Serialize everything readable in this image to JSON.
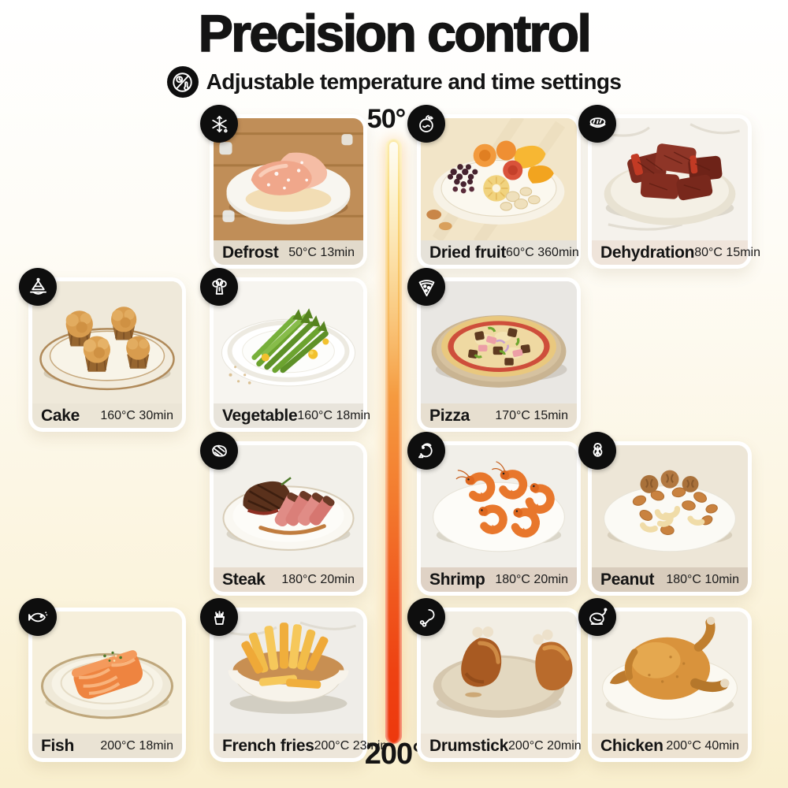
{
  "header": {
    "title": "Precision control",
    "subtitle": "Adjustable temperature and time settings",
    "subtitle_icon": "time-temperature-icon"
  },
  "scale": {
    "top_label": "50°",
    "bottom_label": "200°",
    "gradient_top_color": "#FCEBA8",
    "gradient_bottom_color": "#ED380D"
  },
  "colors": {
    "badge_background": "#0E0E0E",
    "card_footer": "#EAE2D3",
    "page_bottom_tint": "#F9EFCE",
    "text": "#141414"
  },
  "cards": [
    {
      "id": "defrost",
      "label": "Defrost",
      "temp": "50°C",
      "time": "13min",
      "icon": "snowflake-icon",
      "row": 1,
      "col": 2
    },
    {
      "id": "dried-fruit",
      "label": "Dried fruit",
      "temp": "60°C",
      "time": "360min",
      "icon": "dried-fruit-icon",
      "row": 1,
      "col": 3
    },
    {
      "id": "dehydration",
      "label": "Dehydration",
      "temp": "80°C",
      "time": "15min",
      "icon": "jerky-icon",
      "row": 1,
      "col": 4
    },
    {
      "id": "cake",
      "label": "Cake",
      "temp": "160°C",
      "time": "30min",
      "icon": "cake-icon",
      "row": 2,
      "col": 1
    },
    {
      "id": "vegetable",
      "label": "Vegetable",
      "temp": "160°C",
      "time": "18min",
      "icon": "broccoli-icon",
      "row": 2,
      "col": 2
    },
    {
      "id": "pizza",
      "label": "Pizza",
      "temp": "170°C",
      "time": "15min",
      "icon": "pizza-icon",
      "row": 2,
      "col": 3
    },
    {
      "id": "steak",
      "label": "Steak",
      "temp": "180°C",
      "time": "20min",
      "icon": "steak-icon",
      "row": 3,
      "col": 2
    },
    {
      "id": "shrimp",
      "label": "Shrimp",
      "temp": "180°C",
      "time": "20min",
      "icon": "shrimp-icon",
      "row": 3,
      "col": 3
    },
    {
      "id": "peanut",
      "label": "Peanut",
      "temp": "180°C",
      "time": "10min",
      "icon": "peanut-icon",
      "row": 3,
      "col": 4
    },
    {
      "id": "fish",
      "label": "Fish",
      "temp": "200°C",
      "time": "18min",
      "icon": "fish-icon",
      "row": 4,
      "col": 1
    },
    {
      "id": "french-fries",
      "label": "French fries",
      "temp": "200°C",
      "time": "23min",
      "icon": "fries-icon",
      "row": 4,
      "col": 2
    },
    {
      "id": "drumstick",
      "label": "Drumstick",
      "temp": "200°C",
      "time": "20min",
      "icon": "drumstick-icon",
      "row": 4,
      "col": 3
    },
    {
      "id": "chicken",
      "label": "Chicken",
      "temp": "200°C",
      "time": "40min",
      "icon": "chicken-icon",
      "row": 4,
      "col": 4
    }
  ]
}
